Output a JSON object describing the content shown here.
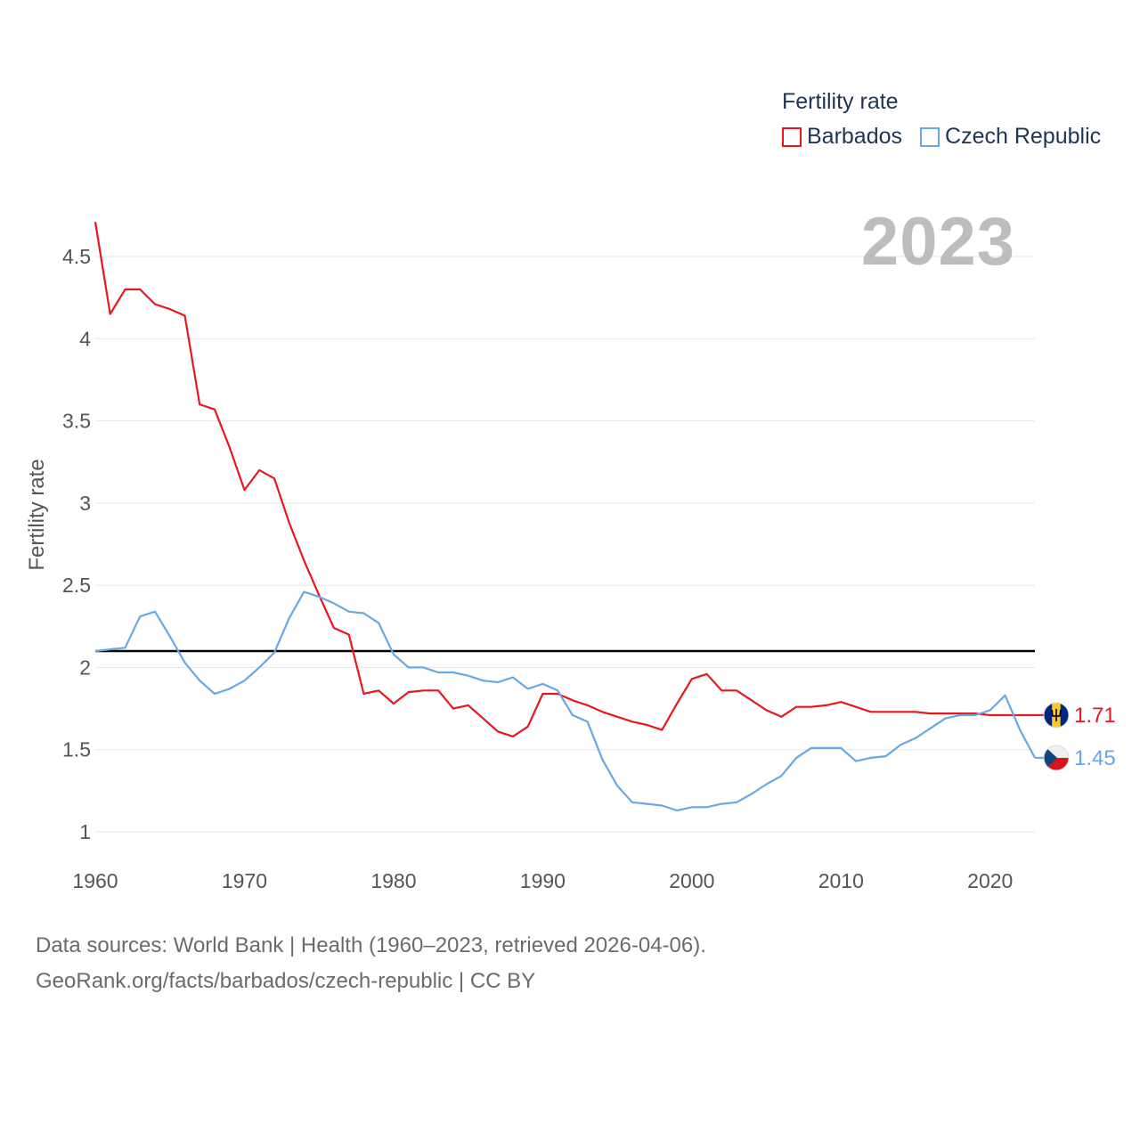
{
  "legend": {
    "title": "Fertility rate",
    "items": [
      {
        "label": "Barbados",
        "color": "#e8171f"
      },
      {
        "label": "Czech Republic",
        "color": "#67a8e6"
      }
    ]
  },
  "year_label": "2023",
  "footer": {
    "line1": "Data sources: World Bank | Health (1960–2023, retrieved 2026-04-06).",
    "line2": "GeoRank.org/facts/barbados/czech-republic | CC BY"
  },
  "chart_data": {
    "type": "line",
    "title": "Fertility rate",
    "xlabel": "",
    "ylabel": "Fertility rate",
    "xlim": [
      1960,
      2023
    ],
    "ylim": [
      0.85,
      4.7
    ],
    "x_ticks": [
      "1960",
      "1970",
      "1980",
      "1990",
      "2000",
      "2010",
      "2020"
    ],
    "y_ticks": [
      "1",
      "1.5",
      "2",
      "2.5",
      "3",
      "3.5",
      "4",
      "4.5"
    ],
    "grid": true,
    "reference_line": {
      "y": 2.1,
      "color": "#000000"
    },
    "x": [
      1960,
      1961,
      1962,
      1963,
      1964,
      1965,
      1966,
      1967,
      1968,
      1969,
      1970,
      1971,
      1972,
      1973,
      1974,
      1975,
      1976,
      1977,
      1978,
      1979,
      1980,
      1981,
      1982,
      1983,
      1984,
      1985,
      1986,
      1987,
      1988,
      1989,
      1990,
      1991,
      1992,
      1993,
      1994,
      1995,
      1996,
      1997,
      1998,
      1999,
      2000,
      2001,
      2002,
      2003,
      2004,
      2005,
      2006,
      2007,
      2008,
      2009,
      2010,
      2011,
      2012,
      2013,
      2014,
      2015,
      2016,
      2017,
      2018,
      2019,
      2020,
      2021,
      2022,
      2023
    ],
    "series": [
      {
        "name": "Barbados",
        "color": "#e8171f",
        "end_label": "1.71",
        "values": [
          4.71,
          4.15,
          4.3,
          4.3,
          4.21,
          4.18,
          4.14,
          3.6,
          3.57,
          3.34,
          3.08,
          3.2,
          3.15,
          2.88,
          2.65,
          2.44,
          2.24,
          2.2,
          1.84,
          1.86,
          1.78,
          1.85,
          1.86,
          1.86,
          1.75,
          1.77,
          1.69,
          1.61,
          1.58,
          1.64,
          1.84,
          1.84,
          1.8,
          1.77,
          1.73,
          1.7,
          1.67,
          1.65,
          1.62,
          1.78,
          1.93,
          1.96,
          1.86,
          1.86,
          1.8,
          1.74,
          1.7,
          1.76,
          1.76,
          1.77,
          1.79,
          1.76,
          1.73,
          1.73,
          1.73,
          1.73,
          1.72,
          1.72,
          1.72,
          1.72,
          1.71,
          1.71,
          1.71,
          1.71
        ]
      },
      {
        "name": "Czech Republic",
        "color": "#67a8e6",
        "end_label": "1.45",
        "values": [
          2.1,
          2.11,
          2.12,
          2.31,
          2.34,
          2.19,
          2.03,
          1.92,
          1.84,
          1.87,
          1.92,
          2.0,
          2.09,
          2.3,
          2.46,
          2.43,
          2.39,
          2.34,
          2.33,
          2.27,
          2.08,
          2.0,
          2.0,
          1.97,
          1.97,
          1.95,
          1.92,
          1.91,
          1.94,
          1.87,
          1.9,
          1.86,
          1.71,
          1.67,
          1.44,
          1.28,
          1.18,
          1.17,
          1.16,
          1.13,
          1.15,
          1.15,
          1.17,
          1.18,
          1.23,
          1.29,
          1.34,
          1.45,
          1.51,
          1.51,
          1.51,
          1.43,
          1.45,
          1.46,
          1.53,
          1.57,
          1.63,
          1.69,
          1.71,
          1.71,
          1.74,
          1.83,
          1.62,
          1.45
        ]
      }
    ]
  }
}
